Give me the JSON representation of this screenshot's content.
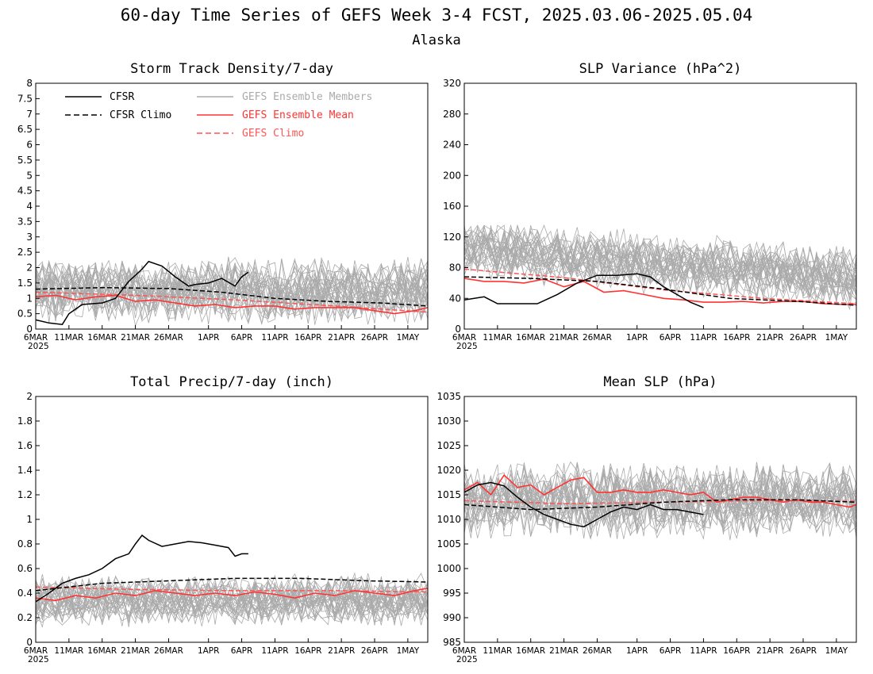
{
  "title": "60-day Time Series of GEFS Week 3-4 FCST, 2025.03.06-2025.05.04",
  "subtitle": "Alaska",
  "colors": {
    "cfsr": "#000000",
    "ens_mean": "#ff3333",
    "members": "#aaaaaa",
    "gefs_climo": "#ff5555"
  },
  "legend": {
    "cfsr": "CFSR",
    "cfsr_climo": "CFSR Climo",
    "members": "GEFS Ensemble Members",
    "ens_mean": "GEFS Ensemble Mean",
    "gefs_climo": "GEFS Climo"
  },
  "x_ticks": [
    "6MAR",
    "11MAR",
    "16MAR",
    "21MAR",
    "26MAR",
    "1APR",
    "6APR",
    "11APR",
    "16APR",
    "21APR",
    "26APR",
    "1MAY"
  ],
  "x_tick_days": [
    0,
    5,
    10,
    15,
    20,
    26,
    31,
    36,
    41,
    46,
    51,
    56
  ],
  "x_year": "2025",
  "chart_data": [
    {
      "type": "line",
      "title": "Storm Track Density/7-day",
      "ylim": [
        0,
        8
      ],
      "yticks": [
        "0",
        "0.5",
        "1",
        "1.5",
        "2",
        "2.5",
        "3",
        "3.5",
        "4",
        "4.5",
        "5",
        "5.5",
        "6",
        "6.5",
        "7",
        "7.5",
        "8"
      ],
      "ytick_values": [
        0,
        0.5,
        1,
        1.5,
        2,
        2.5,
        3,
        3.5,
        4,
        4.5,
        5,
        5.5,
        6,
        6.5,
        7,
        7.5,
        8
      ],
      "members_range": [
        0,
        3.1
      ],
      "series": [
        {
          "name": "CFSR",
          "x": [
            0,
            2,
            4,
            5,
            7,
            10,
            12,
            14,
            16,
            17,
            19,
            21,
            23,
            24,
            26,
            28,
            30,
            31,
            32
          ],
          "values": [
            0.3,
            0.2,
            0.15,
            0.5,
            0.8,
            0.85,
            1.0,
            1.55,
            1.95,
            2.2,
            2.05,
            1.7,
            1.4,
            1.45,
            1.5,
            1.65,
            1.4,
            1.7,
            1.85
          ]
        },
        {
          "name": "CFSR Climo",
          "x": [
            0,
            10,
            20,
            28,
            36,
            44,
            52,
            59
          ],
          "values": [
            1.3,
            1.35,
            1.32,
            1.2,
            1.0,
            0.9,
            0.85,
            0.75
          ]
        },
        {
          "name": "GEFS Ensemble Mean",
          "x": [
            0,
            3,
            6,
            9,
            12,
            15,
            18,
            21,
            24,
            27,
            30,
            33,
            36,
            39,
            42,
            45,
            48,
            51,
            54,
            57,
            59
          ],
          "values": [
            1.05,
            1.1,
            0.95,
            1.05,
            1.1,
            0.9,
            0.95,
            0.85,
            0.75,
            0.8,
            0.7,
            0.75,
            0.75,
            0.65,
            0.7,
            0.7,
            0.7,
            0.6,
            0.5,
            0.6,
            0.7
          ]
        },
        {
          "name": "GEFS Climo",
          "x": [
            0,
            15,
            30,
            45,
            59
          ],
          "values": [
            1.2,
            1.1,
            0.95,
            0.75,
            0.55
          ]
        }
      ]
    },
    {
      "type": "line",
      "title": "SLP Variance (hPa^2)",
      "ylim": [
        0,
        320
      ],
      "yticks": [
        "0",
        "40",
        "80",
        "120",
        "160",
        "200",
        "240",
        "280",
        "320"
      ],
      "ytick_values": [
        0,
        40,
        80,
        120,
        160,
        200,
        240,
        280,
        320
      ],
      "members_range": [
        20,
        135
      ],
      "series": [
        {
          "name": "CFSR",
          "x": [
            0,
            3,
            5,
            8,
            11,
            14,
            17,
            20,
            23,
            26,
            28,
            30,
            32,
            34,
            36
          ],
          "values": [
            38,
            42,
            33,
            33,
            33,
            45,
            60,
            70,
            70,
            72,
            68,
            55,
            45,
            35,
            28
          ]
        },
        {
          "name": "CFSR Climo",
          "x": [
            0,
            10,
            20,
            30,
            40,
            50,
            59
          ],
          "values": [
            68,
            66,
            62,
            52,
            40,
            36,
            31
          ]
        },
        {
          "name": "GEFS Ensemble Mean",
          "x": [
            0,
            3,
            6,
            9,
            12,
            15,
            18,
            21,
            24,
            27,
            30,
            33,
            36,
            39,
            42,
            45,
            48,
            51,
            54,
            57,
            59
          ],
          "values": [
            66,
            62,
            62,
            60,
            65,
            55,
            62,
            48,
            50,
            45,
            40,
            38,
            35,
            35,
            36,
            34,
            36,
            36,
            33,
            32,
            32
          ]
        },
        {
          "name": "GEFS Climo",
          "x": [
            0,
            15,
            30,
            45,
            59
          ],
          "values": [
            78,
            67,
            51,
            40,
            33
          ]
        }
      ]
    },
    {
      "type": "line",
      "title": "Total Precip/7-day (inch)",
      "ylim": [
        0,
        2
      ],
      "yticks": [
        "0",
        "0.2",
        "0.4",
        "0.6",
        "0.8",
        "1",
        "1.2",
        "1.4",
        "1.6",
        "1.8",
        "2"
      ],
      "ytick_values": [
        0,
        0.2,
        0.4,
        0.6,
        0.8,
        1,
        1.2,
        1.4,
        1.6,
        1.8,
        2
      ],
      "members_range": [
        0.1,
        0.7
      ],
      "series": [
        {
          "name": "CFSR",
          "x": [
            0,
            2,
            4,
            6,
            8,
            10,
            12,
            14,
            15,
            16,
            17,
            19,
            21,
            23,
            25,
            27,
            29,
            30,
            31,
            32
          ],
          "values": [
            0.33,
            0.4,
            0.48,
            0.52,
            0.55,
            0.6,
            0.68,
            0.72,
            0.8,
            0.87,
            0.83,
            0.78,
            0.8,
            0.82,
            0.81,
            0.79,
            0.77,
            0.7,
            0.72,
            0.72
          ]
        },
        {
          "name": "CFSR Climo",
          "x": [
            0,
            10,
            20,
            30,
            40,
            50,
            59
          ],
          "values": [
            0.42,
            0.48,
            0.5,
            0.52,
            0.52,
            0.5,
            0.49
          ]
        },
        {
          "name": "GEFS Ensemble Mean",
          "x": [
            0,
            3,
            6,
            9,
            12,
            15,
            18,
            21,
            24,
            27,
            30,
            33,
            36,
            39,
            42,
            45,
            48,
            51,
            54,
            57,
            59
          ],
          "values": [
            0.36,
            0.34,
            0.38,
            0.36,
            0.4,
            0.38,
            0.42,
            0.4,
            0.38,
            0.4,
            0.38,
            0.41,
            0.39,
            0.36,
            0.4,
            0.38,
            0.42,
            0.4,
            0.38,
            0.42,
            0.44
          ]
        },
        {
          "name": "GEFS Climo",
          "x": [
            0,
            15,
            30,
            45,
            59
          ],
          "values": [
            0.45,
            0.43,
            0.42,
            0.42,
            0.41
          ]
        }
      ]
    },
    {
      "type": "line",
      "title": "Mean SLP (hPa)",
      "ylim": [
        985,
        1035
      ],
      "yticks": [
        "985",
        "990",
        "995",
        "1000",
        "1005",
        "1010",
        "1015",
        "1020",
        "1025",
        "1030",
        "1035"
      ],
      "ytick_values": [
        985,
        990,
        995,
        1000,
        1005,
        1010,
        1015,
        1020,
        1025,
        1030,
        1035
      ],
      "members_range": [
        1005,
        1027
      ],
      "series": [
        {
          "name": "CFSR",
          "x": [
            0,
            2,
            4,
            6,
            8,
            10,
            12,
            14,
            16,
            18,
            20,
            22,
            24,
            26,
            28,
            30,
            32,
            34,
            36
          ],
          "values": [
            1015.5,
            1017.0,
            1017.5,
            1016.8,
            1014.5,
            1012.5,
            1011.0,
            1010.0,
            1009.0,
            1008.5,
            1010.0,
            1011.5,
            1012.5,
            1012.0,
            1013.0,
            1012.0,
            1012.0,
            1011.5,
            1011.0
          ]
        },
        {
          "name": "CFSR Climo",
          "x": [
            0,
            10,
            20,
            30,
            40,
            50,
            59
          ],
          "values": [
            1013.0,
            1012.0,
            1012.5,
            1013.5,
            1014.0,
            1014.0,
            1013.5
          ]
        },
        {
          "name": "GEFS Ensemble Mean",
          "x": [
            0,
            2,
            4,
            6,
            8,
            10,
            12,
            14,
            16,
            18,
            20,
            22,
            24,
            26,
            28,
            30,
            32,
            34,
            36,
            38,
            40,
            42,
            44,
            46,
            48,
            50,
            52,
            54,
            56,
            58,
            59
          ],
          "values": [
            1016.0,
            1017.5,
            1015.0,
            1019.0,
            1016.5,
            1017.0,
            1015.0,
            1016.5,
            1018.0,
            1018.5,
            1015.5,
            1015.5,
            1016.0,
            1015.5,
            1015.5,
            1016.0,
            1015.5,
            1015.0,
            1015.5,
            1013.5,
            1014.0,
            1014.5,
            1014.5,
            1014.0,
            1013.5,
            1014.0,
            1013.5,
            1013.5,
            1013.0,
            1012.5,
            1013.0
          ]
        },
        {
          "name": "GEFS Climo",
          "x": [
            0,
            15,
            30,
            45,
            59
          ],
          "values": [
            1013.8,
            1013.2,
            1013.5,
            1013.8,
            1013.7
          ]
        }
      ]
    }
  ]
}
